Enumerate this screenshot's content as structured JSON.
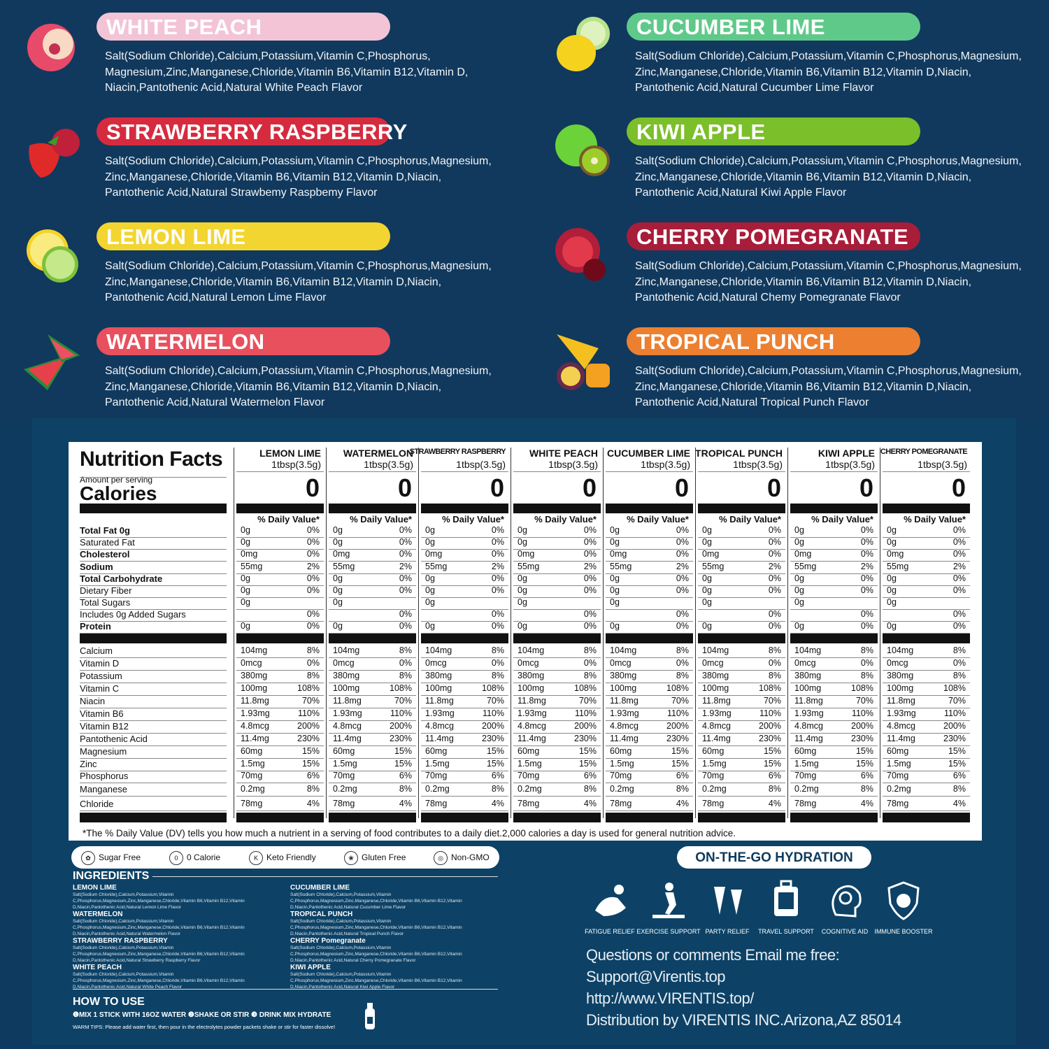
{
  "flavors": [
    {
      "name": "WHITE PEACH",
      "color": "#f2c4d6",
      "ingredients": [
        "Salt(Sodium Chloride),Calcium,Potassium,Vitamin C,Phosphorus,",
        "Magnesium,Zinc,Manganese,Chloride,Vitamin B6,Vitamin B12,Vitamin D,",
        "Niacin,Pantothenic Acid,Natural White Peach Flavor"
      ],
      "icon": "white-peach-icon"
    },
    {
      "name": "CUCUMBER LIME",
      "color": "#5fc98a",
      "ingredients": [
        "Salt(Sodium Chloride),Calcium,Potassium,Vitamin C,Phosphorus,Magnesium,",
        "Zinc,Manganese,Chloride,Vitamin B6,Vitamin B12,Vitamin D,Niacin,",
        "Pantothenic Acid,Natural Cucumber Lime Flavor"
      ],
      "icon": "cucumber-lime-icon"
    },
    {
      "name": "STRAWBERRY RASPBERRY",
      "color": "#d62b3f",
      "ingredients": [
        "Salt(Sodium Chloride),Calcium,Potassium,Vitamin C,Phosphorus,Magnesium,",
        "Zinc,Manganese,Chloride,Vitamin B6,Vitamin B12,Vitamin D,Niacin,",
        "Pantothenic Acid,Natural Strawbemy Raspbemy Flavor"
      ],
      "icon": "strawberry-raspberry-icon"
    },
    {
      "name": "KIWI APPLE",
      "color": "#7bbf2a",
      "ingredients": [
        "Salt(Sodium Chloride),Calcium,Potassium,Vitamin C,Phosphorus,Magnesium,",
        "Zinc,Manganese,Chloride,Vitamin B6,Vitamin B12,Vitamin D,Niacin,",
        "Pantothenic Acid,Natural Kiwi Apple Flavor"
      ],
      "icon": "kiwi-apple-icon"
    },
    {
      "name": "LEMON LIME",
      "color": "#f2d530",
      "ingredients": [
        "Salt(Sodium Chloride),Calcium,Potassium,Vitamin C,Phosphorus,Magnesium,",
        "Zinc,Manganese,Chloride,Vitamin B6,Vitamin B12,Vitamin D,Niacin,",
        "Pantothenic Acid,Natural Lemon Lime Flavor"
      ],
      "icon": "lemon-lime-icon"
    },
    {
      "name": "CHERRY POMEGRANATE",
      "color": "#a81d3a",
      "ingredients": [
        "Salt(Sodium Chloride),Calcium,Potassium,Vitamin C,Phosphorus,Magnesium,",
        "Zinc,Manganese,Chloride,Vitamin B6,Vitamin B12,Vitamin D,Niacin,",
        "Pantothenic Acid,Natural Chemy Pomegranate Flavor"
      ],
      "icon": "cherry-pomegranate-icon"
    },
    {
      "name": "WATERMELON",
      "color": "#e8505e",
      "ingredients": [
        "Salt(Sodium Chloride),Calcium,Potassium,Vitamin C,Phosphorus,Magnesium,",
        "Zinc,Manganese,Chloride,Vitamin B6,Vitamin B12,Vitamin D,Niacin,",
        "Pantothenic Acid,Natural Watermelon Flavor"
      ],
      "icon": "watermelon-icon"
    },
    {
      "name": "TROPICAL PUNCH",
      "color": "#ec8030",
      "ingredients": [
        "Salt(Sodium Chloride),Calcium,Potassium,Vitamin C,Phosphorus,Magnesium,",
        "Zinc,Manganese,Chloride,Vitamin B6,Vitamin B12,Vitamin D,Niacin,",
        "Pantothenic Acid,Natural Tropical Punch Flavor"
      ],
      "icon": "tropical-punch-icon"
    }
  ],
  "nutrition": {
    "title": "Nutrition Facts",
    "amount_per_serving": "Amount per serving",
    "calories_label": "Calories",
    "row_labels": [
      {
        "label": "Total Fat 0g",
        "bold": true
      },
      {
        "label": "Saturated Fat",
        "bold": false
      },
      {
        "label": "Cholesterol",
        "bold": true
      },
      {
        "label": "Sodium",
        "bold": true
      },
      {
        "label": "Total Carbohydrate",
        "bold": true
      },
      {
        "label": "Dietary Fiber",
        "bold": false
      },
      {
        "label": "Total Sugars",
        "bold": false
      },
      {
        "label": "Includes 0g Added Sugars",
        "bold": false
      },
      {
        "label": "Protein",
        "bold": true
      }
    ],
    "vit_labels": [
      "Calcium",
      "Vitamin D",
      "Potassium",
      "Vitamin C",
      "Niacin",
      "Vitamin B6",
      "Vitamin B12",
      "Pantothenic Acid",
      "Magnesium",
      "Zinc",
      "Phosphorus",
      "Manganese",
      "Chloride"
    ],
    "columns": [
      {
        "name": "LEMON LIME"
      },
      {
        "name": "WATERMELON"
      },
      {
        "name": "STRAWBERRY RASPBERRY"
      },
      {
        "name": "WHITE PEACH"
      },
      {
        "name": "CUCUMBER LIME"
      },
      {
        "name": "TROPICAL PUNCH"
      },
      {
        "name": "KIWI APPLE"
      },
      {
        "name": "CHERRY POMEGRANATE"
      }
    ],
    "serving": "1tbsp(3.5g)",
    "calories": "0",
    "dv_header": "% Daily Value*",
    "values": [
      [
        "0g",
        "0%"
      ],
      [
        "0g",
        "0%"
      ],
      [
        "0mg",
        "0%"
      ],
      [
        "55mg",
        "2%"
      ],
      [
        "0g",
        "0%"
      ],
      [
        "0g",
        "0%"
      ],
      [
        "0g",
        ""
      ],
      [
        "",
        "0%"
      ],
      [
        "0g",
        "0%"
      ]
    ],
    "vit_values": [
      [
        "104mg",
        "8%"
      ],
      [
        "0mcg",
        "0%"
      ],
      [
        "380mg",
        "8%"
      ],
      [
        "100mg",
        "108%"
      ],
      [
        "11.8mg",
        "70%"
      ],
      [
        "1.93mg",
        "110%"
      ],
      [
        "4.8mcg",
        "200%"
      ],
      [
        "11.4mg",
        "230%"
      ],
      [
        "60mg",
        "15%"
      ],
      [
        "1.5mg",
        "15%"
      ],
      [
        "70mg",
        "6%"
      ],
      [
        "0.2mg",
        "8%"
      ],
      [
        "78mg",
        "4%"
      ]
    ],
    "footnote": "*The % Daily Value (DV) tells you how much a nutrient in a serving  of food contributes to a daily diet.2,000 calories a day is used  for general nutrition advice."
  },
  "badges": [
    {
      "label": "Sugar Free",
      "icon": "sugar-free-icon"
    },
    {
      "label": "0 Calorie",
      "icon": "zero-calorie-icon"
    },
    {
      "label": "Keto Friendly",
      "icon": "keto-icon"
    },
    {
      "label": "Gluten Free",
      "icon": "gluten-free-icon"
    },
    {
      "label": "Non-GMO",
      "icon": "non-gmo-icon"
    }
  ],
  "ingredients_section": {
    "heading": "INGREDIENTS",
    "items": [
      {
        "name": "LEMON LIME",
        "text": "Salt(Sodium Chloride),Calcium,Potassium,Vitamin C,Phosphorus,Magnesium,Zinc,Manganese,Chloride,Vitamin B6,Vitamin B12,Vitamin D,Niacin,Pantothenic Acid,Natural Lemon Lime Flavor"
      },
      {
        "name": "CUCUMBER LIME",
        "text": "Salt(Sodium Chloride),Calcium,Potassium,Vitamin C,Phosphorus,Magnesium,Zinc,Manganese,Chloride,Vitamin B6,Vitamin B12,Vitamin D,Niacin,Pantothenic Acid,Natural Cucumber Lime Flavor"
      },
      {
        "name": "WATERMELON",
        "text": "Salt(Sodium Chloride),Calcium,Potassium,Vitamin C,Phosphorus,Magnesium,Zinc,Manganese,Chloride,Vitamin B6,Vitamin B12,Vitamin D,Niacin,Pantothenic Acid,Natural Watermelon Flavor"
      },
      {
        "name": "TROPICAL PUNCH",
        "text": "Salt(Sodium Chloride),Calcium,Potassium,Vitamin C,Phosphorus,Magnesium,Zinc,Manganese,Chloride,Vitamin B6,Vitamin B12,Vitamin D,Niacin,Pantothenic Acid,Natural Tropical Punch Flavor"
      },
      {
        "name": "STRAWBERRY RASPBERRY",
        "text": "Salt(Sodium Chloride),Calcium,Potassium,Vitamin C,Phosphorus,Magnesium,Zinc,Manganese,Chloride,Vitamin B6,Vitamin B12,Vitamin D,Niacin,Pantothenic Acid,Natural Strawberry Raspberry Flavor"
      },
      {
        "name": "CHERRY Pomegranate",
        "text": "Salt(Sodium Chloride),Calcium,Potassium,Vitamin C,Phosphorus,Magnesium,Zinc,Manganese,Chloride,Vitamin B6,Vitamin B12,Vitamin D,Niacin,Pantothenic Acid,Natural Cherry Pomegranate Flavor"
      },
      {
        "name": "WHITE PEACH",
        "text": "Salt(Sodium Chloride),Calcium,Potassium,Vitamin C,Phosphorus,Magnesium,Zinc,Manganese,Chloride,Vitamin B6,Vitamin B12,Vitamin D,Niacin,Pantothenic Acid,Natural White Peach Flavor"
      },
      {
        "name": "KIWI APPLE",
        "text": "Salt(Sodium Chloride),Calcium,Potassium,Vitamin C,Phosphorus,Magnesium,Zinc,Manganese,Chloride,Vitamin B6,Vitamin B12,Vitamin D,Niacin,Pantothenic Acid,Natural Kiwi Apple Flavor"
      }
    ]
  },
  "how_to_use": {
    "heading": "HOW TO USE",
    "steps": "❶MIX 1 STICK WITH 16OZ WATER   ❷SHAKE OR STIR   ❸ DRINK MIX HYDRATE",
    "warm_tips": "WARM TIPS: Please add water first, then pour in the electrolytes powder packets shake or stir for faster dissolve!"
  },
  "on_the_go": "ON-THE-GO HYDRATION",
  "benefits": [
    {
      "label": "FATIGUE RELIEF",
      "icon": "fatigue-relief-icon"
    },
    {
      "label": "EXERCISE SUPPORT",
      "icon": "exercise-support-icon"
    },
    {
      "label": "PARTY RELIEF",
      "icon": "party-relief-icon"
    },
    {
      "label": "TRAVEL SUPPORT",
      "icon": "travel-support-icon"
    },
    {
      "label": "COGNITIVE AID",
      "icon": "cognitive-aid-icon"
    },
    {
      "label": "IMMUNE BOOSTER",
      "icon": "immune-booster-icon"
    }
  ],
  "contact": {
    "line1": "Questions or comments Email me free:",
    "email": "Support@Virentis.top",
    "url": "http://www.VIRENTIS.top/",
    "distribution": "Distribution by VIRENTIS INC.Arizona,AZ 85014"
  }
}
